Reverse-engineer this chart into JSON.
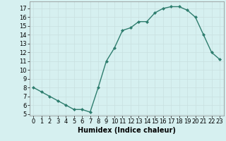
{
  "x": [
    0,
    1,
    2,
    3,
    4,
    5,
    6,
    7,
    8,
    9,
    10,
    11,
    12,
    13,
    14,
    15,
    16,
    17,
    18,
    19,
    20,
    21,
    22,
    23
  ],
  "y": [
    8.0,
    7.5,
    7.0,
    6.5,
    6.0,
    5.5,
    5.5,
    5.2,
    8.0,
    11.0,
    12.5,
    14.5,
    14.8,
    15.5,
    15.5,
    16.5,
    17.0,
    17.2,
    17.2,
    16.8,
    16.0,
    14.0,
    12.0,
    11.2
  ],
  "xlabel": "Humidex (Indice chaleur)",
  "xlim": [
    -0.5,
    23.5
  ],
  "ylim": [
    4.8,
    17.8
  ],
  "yticks": [
    5,
    6,
    7,
    8,
    9,
    10,
    11,
    12,
    13,
    14,
    15,
    16,
    17
  ],
  "xticks": [
    0,
    1,
    2,
    3,
    4,
    5,
    6,
    7,
    8,
    9,
    10,
    11,
    12,
    13,
    14,
    15,
    16,
    17,
    18,
    19,
    20,
    21,
    22,
    23
  ],
  "line_color": "#2e7d6e",
  "marker_color": "#2e7d6e",
  "bg_color": "#d6f0f0",
  "grid_color": "#c8e0e0",
  "text_color": "#000000",
  "xlabel_fontsize": 7,
  "tick_fontsize": 6,
  "marker": "D",
  "markersize": 2.0,
  "linewidth": 1.0
}
